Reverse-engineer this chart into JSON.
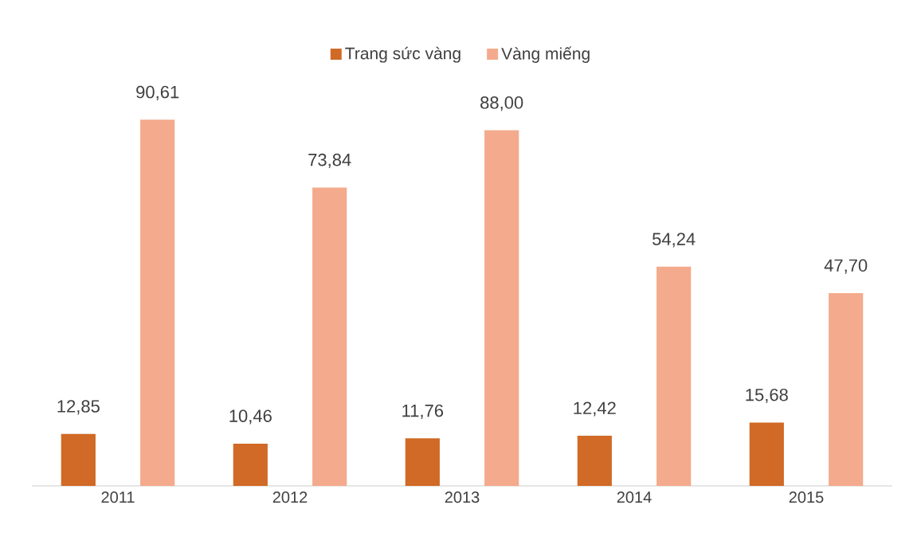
{
  "chart_data": {
    "type": "bar",
    "categories": [
      "2011",
      "2012",
      "2013",
      "2014",
      "2015"
    ],
    "series": [
      {
        "name": "Trang sức vàng",
        "color": "#d06a26",
        "values": [
          12.85,
          10.46,
          11.76,
          12.42,
          15.68
        ],
        "value_labels": [
          "12,85",
          "10,46",
          "11,76",
          "12,42",
          "15,68"
        ]
      },
      {
        "name": "Vàng miếng",
        "color": "#f4aa8c",
        "values": [
          90.61,
          73.84,
          88.0,
          54.24,
          47.7
        ],
        "value_labels": [
          "90,61",
          "73,84",
          "88,00",
          "54,24",
          "47,70"
        ]
      }
    ],
    "legend": "top"
  }
}
